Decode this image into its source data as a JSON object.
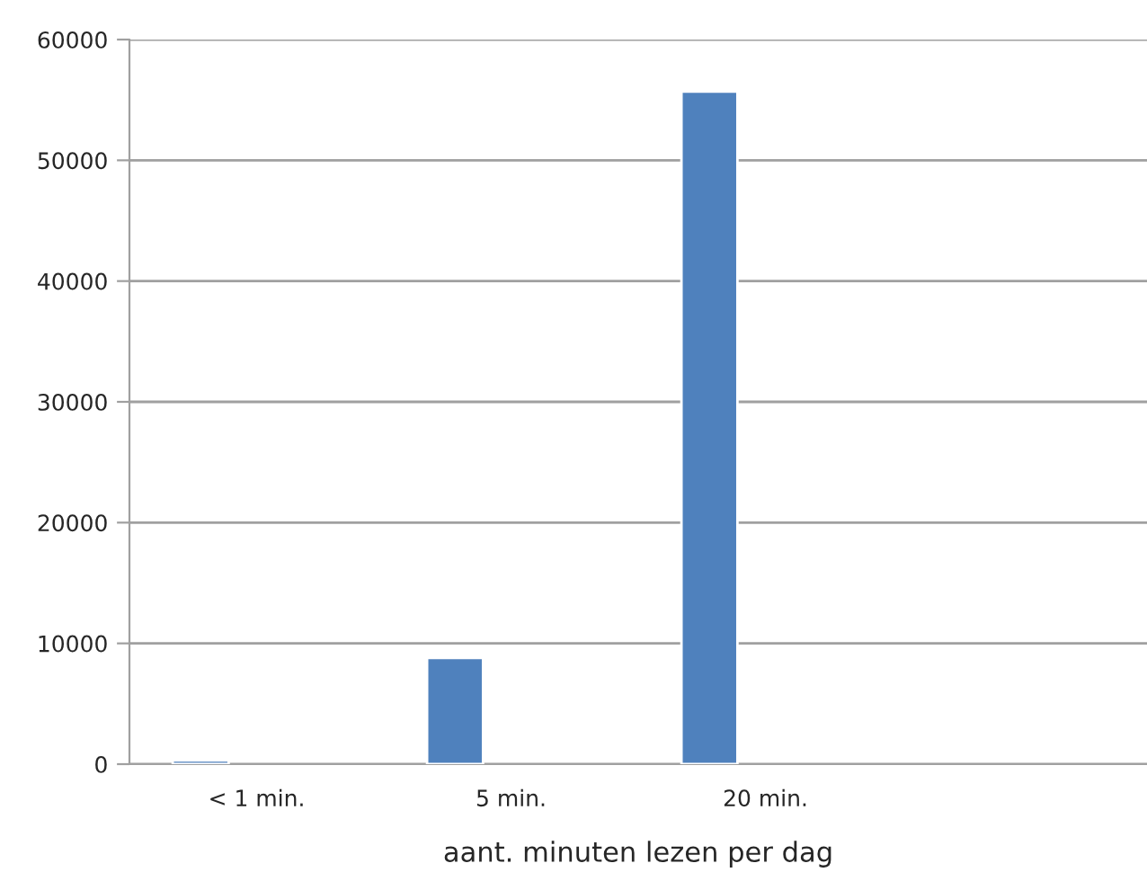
{
  "chart_data": {
    "type": "bar",
    "xlabel": "aant. minuten lezen per dag",
    "categories": [
      "< 1 min.",
      "5 min.",
      "20 min.",
      null
    ],
    "series": [
      {
        "color": "#4f81bd",
        "values": [
          300,
          8800,
          55700,
          null
        ]
      }
    ],
    "ylim": [
      0,
      60000
    ],
    "yticks": [
      0,
      10000,
      20000,
      30000,
      40000,
      50000,
      60000
    ],
    "grid": "y",
    "legend": false
  }
}
